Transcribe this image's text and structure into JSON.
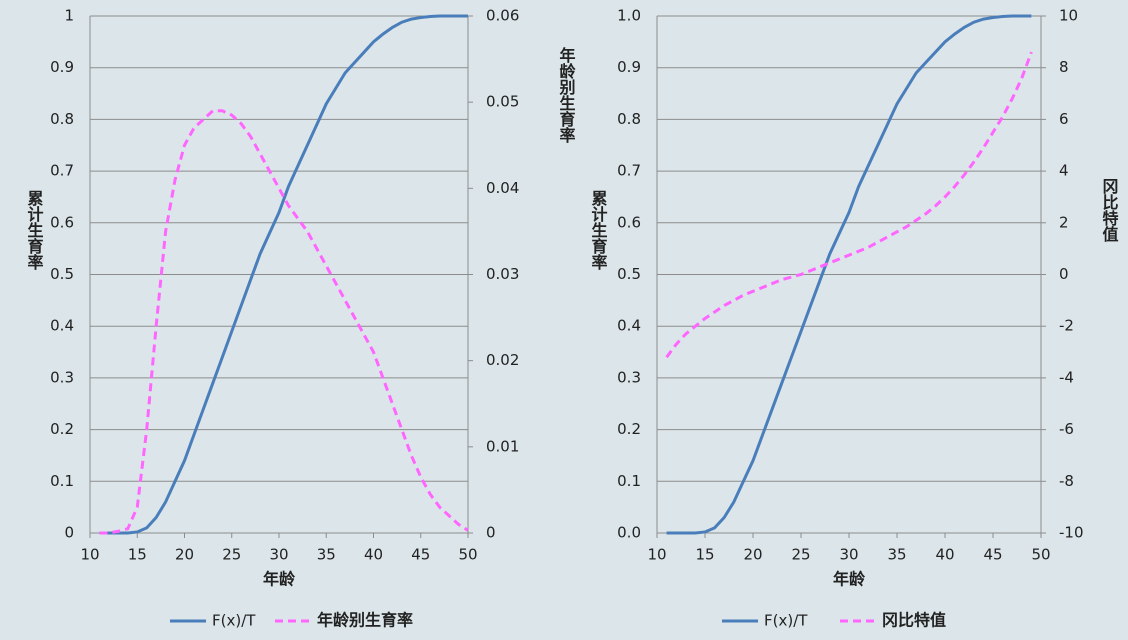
{
  "chart_data": [
    {
      "type": "line",
      "x_label": "年龄",
      "y_label": "累计生育率",
      "y2_label": "年龄别生育率",
      "xlim": [
        10,
        50
      ],
      "xticks": [
        10,
        15,
        20,
        25,
        30,
        35,
        40,
        45,
        50
      ],
      "ylim": [
        0,
        1
      ],
      "yticks": [
        0,
        0.1,
        0.2,
        0.3,
        0.4,
        0.5,
        0.6,
        0.7,
        0.8,
        0.9,
        1
      ],
      "y2lim": [
        0,
        0.06
      ],
      "y2ticks": [
        0,
        0.01,
        0.02,
        0.03,
        0.04,
        0.05,
        0.06
      ],
      "grid": true,
      "legend": "bottom",
      "x": [
        11,
        12,
        13,
        14,
        15,
        16,
        17,
        18,
        19,
        20,
        21,
        22,
        23,
        24,
        25,
        26,
        27,
        28,
        29,
        30,
        31,
        32,
        33,
        34,
        35,
        36,
        37,
        38,
        39,
        40,
        41,
        42,
        43,
        44,
        45,
        46,
        47,
        48,
        49,
        50
      ],
      "series": [
        {
          "name": "F(x)/T",
          "color": "#4a7ebb",
          "dashed": false,
          "values": [
            0,
            0,
            0,
            0,
            0.002,
            0.01,
            0.03,
            0.06,
            0.1,
            0.14,
            0.19,
            0.24,
            0.29,
            0.34,
            0.39,
            0.44,
            0.49,
            0.54,
            0.58,
            0.62,
            0.67,
            0.71,
            0.75,
            0.79,
            0.83,
            0.86,
            0.89,
            0.91,
            0.93,
            0.95,
            0.965,
            0.978,
            0.988,
            0.994,
            0.997,
            0.999,
            1,
            1,
            1,
            1
          ]
        },
        {
          "name": "年龄别生育率",
          "color": "#ff66ff",
          "dashed": true,
          "axis": "y2",
          "values": [
            0,
            0,
            0.0002,
            0.0005,
            0.003,
            0.012,
            0.024,
            0.035,
            0.041,
            0.045,
            0.047,
            0.048,
            0.049,
            0.049,
            0.0485,
            0.0475,
            0.046,
            0.044,
            0.042,
            0.04,
            0.038,
            0.0365,
            0.035,
            0.033,
            0.031,
            0.029,
            0.027,
            0.025,
            0.023,
            0.021,
            0.018,
            0.015,
            0.012,
            0.009,
            0.0065,
            0.0045,
            0.003,
            0.002,
            0.001,
            0.0003
          ]
        }
      ]
    },
    {
      "type": "line",
      "x_label": "年龄",
      "y_label": "累计生育率",
      "y2_label": "冈比特值",
      "xlim": [
        10,
        50
      ],
      "xticks": [
        10,
        15,
        20,
        25,
        30,
        35,
        40,
        45,
        50
      ],
      "ylim": [
        0,
        1
      ],
      "yticks": [
        {
          "value": 0,
          "label": "0.0"
        },
        0.1,
        0.2,
        0.3,
        0.4,
        0.5,
        0.6,
        0.7,
        0.8,
        0.9,
        {
          "value": 1,
          "label": "1.0"
        }
      ],
      "y2lim": [
        -10,
        10
      ],
      "y2ticks": [
        -10,
        -8,
        -6,
        -4,
        -2,
        0,
        2,
        4,
        6,
        8,
        10
      ],
      "grid": true,
      "legend": "bottom",
      "x": [
        11,
        12,
        13,
        14,
        15,
        16,
        17,
        18,
        19,
        20,
        21,
        22,
        23,
        24,
        25,
        26,
        27,
        28,
        29,
        30,
        31,
        32,
        33,
        34,
        35,
        36,
        37,
        38,
        39,
        40,
        41,
        42,
        43,
        44,
        45,
        46,
        47,
        48,
        49
      ],
      "series": [
        {
          "name": "F(x)/T",
          "color": "#4a7ebb",
          "dashed": false,
          "values": [
            0,
            0,
            0,
            0,
            0.002,
            0.01,
            0.03,
            0.06,
            0.1,
            0.14,
            0.19,
            0.24,
            0.29,
            0.34,
            0.39,
            0.44,
            0.49,
            0.54,
            0.58,
            0.62,
            0.67,
            0.71,
            0.75,
            0.79,
            0.83,
            0.86,
            0.89,
            0.91,
            0.93,
            0.95,
            0.965,
            0.978,
            0.988,
            0.994,
            0.997,
            0.999,
            1,
            1,
            1
          ]
        },
        {
          "name": "冈比特值",
          "color": "#ff66ff",
          "dashed": true,
          "axis": "y2",
          "values": [
            -3.2,
            -2.7,
            -2.3,
            -2,
            -1.7,
            -1.45,
            -1.2,
            -1,
            -0.8,
            -0.65,
            -0.5,
            -0.35,
            -0.2,
            -0.1,
            0,
            0.15,
            0.3,
            0.45,
            0.6,
            0.75,
            0.9,
            1.05,
            1.25,
            1.45,
            1.65,
            1.85,
            2.1,
            2.35,
            2.65,
            3,
            3.4,
            3.85,
            4.35,
            4.9,
            5.5,
            6.1,
            6.8,
            7.6,
            8.6
          ]
        }
      ]
    }
  ]
}
